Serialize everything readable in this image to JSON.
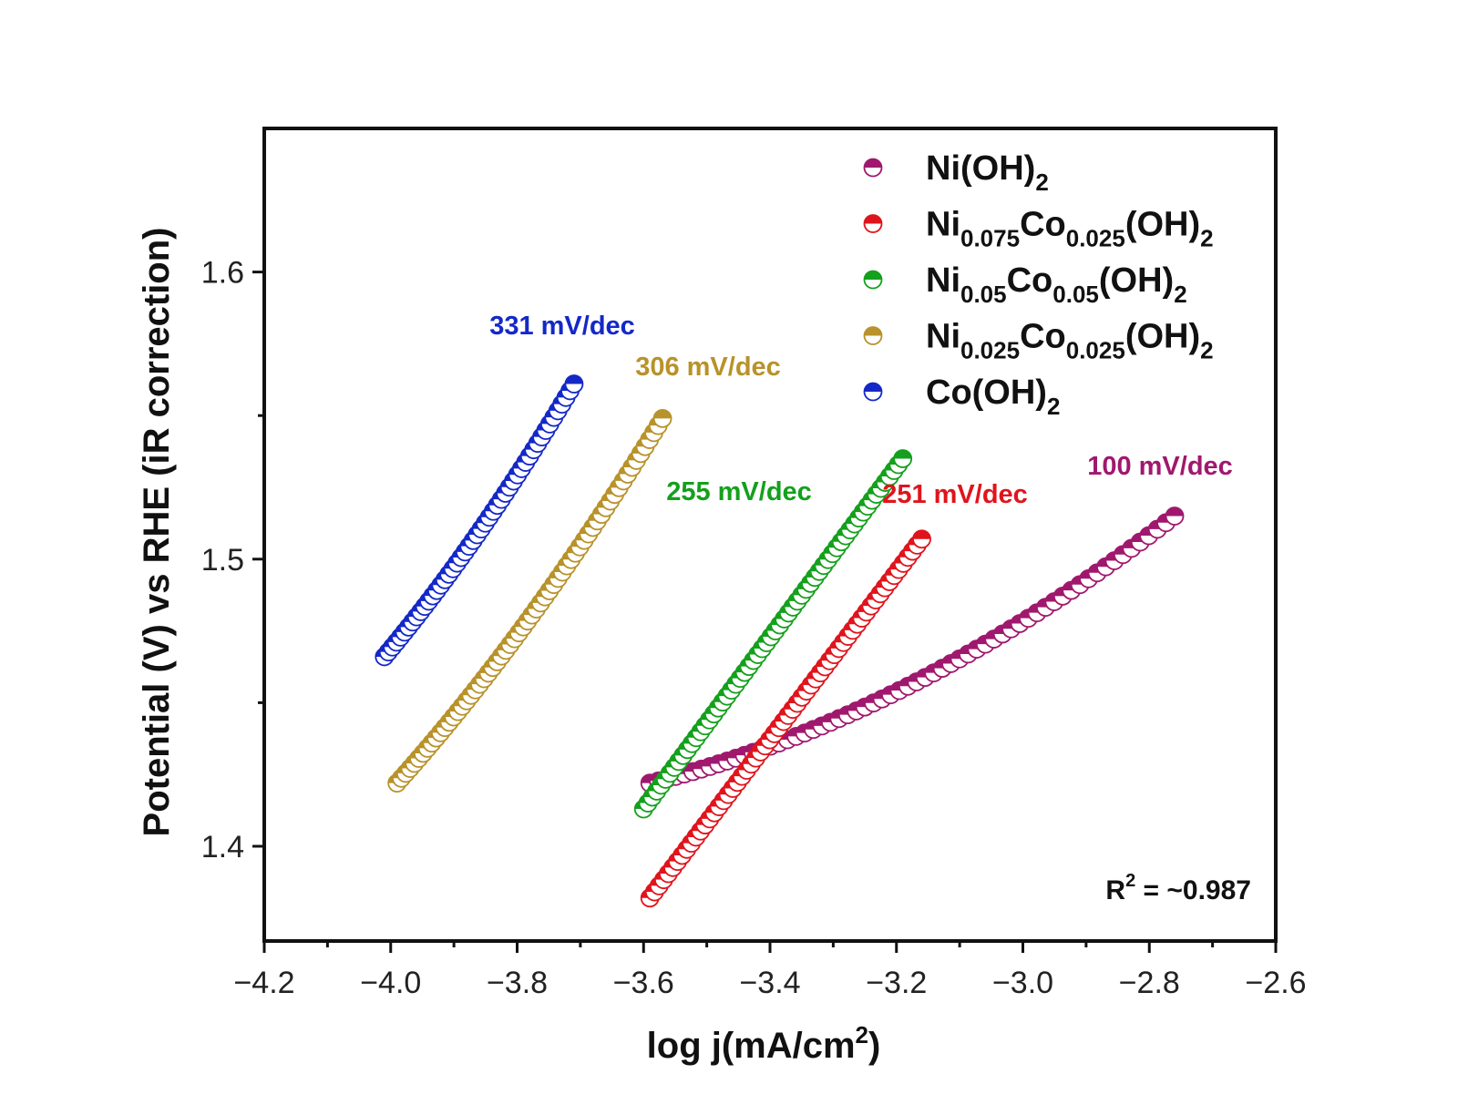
{
  "chart_data": {
    "type": "scatter",
    "xlabel": "log j(mA/cm",
    "xlabel_sup": "2",
    "xlabel_end": ")",
    "ylabel": "Potential (V) vs RHE (iR correction)",
    "xlim": [
      -4.2,
      -2.6
    ],
    "ylim": [
      1.367,
      1.65
    ],
    "x_ticks": [
      "−4.2",
      "−4.0",
      "−3.8",
      "−3.6",
      "−3.4",
      "−3.2",
      "−3.0",
      "−2.8",
      "−2.6"
    ],
    "x_tick_values": [
      -4.2,
      -4.0,
      -3.8,
      -3.6,
      -3.4,
      -3.2,
      -3.0,
      -2.8,
      -2.6
    ],
    "y_ticks": [
      "1.4",
      "1.5",
      "1.6"
    ],
    "y_tick_values": [
      1.4,
      1.5,
      1.6
    ],
    "legend_placement": "top-right",
    "marker": "half-filled circle",
    "series": [
      {
        "name": "Ni(OH)2",
        "legend_parts": [
          [
            "Ni(OH)",
            ""
          ],
          [
            "2",
            "sub"
          ]
        ],
        "color": "#a0186e",
        "x_range": [
          -3.59,
          -2.76
        ],
        "y_range": [
          1.422,
          1.515
        ],
        "points": 62,
        "slope_label": "100 mV/dec"
      },
      {
        "name": "Ni0.075Co0.025(OH)2",
        "legend_parts": [
          [
            "Ni",
            ""
          ],
          [
            "0.075",
            "sub"
          ],
          [
            "Co",
            ""
          ],
          [
            "0.025",
            "sub"
          ],
          [
            "(OH)",
            ""
          ],
          [
            "2",
            "sub"
          ]
        ],
        "color": "#e0141c",
        "x_range": [
          -3.59,
          -3.16
        ],
        "y_range": [
          1.382,
          1.507
        ],
        "points": 60,
        "slope_label": "251 mV/dec"
      },
      {
        "name": "Ni0.05Co0.05(OH)2",
        "legend_parts": [
          [
            "Ni",
            ""
          ],
          [
            "0.05",
            "sub"
          ],
          [
            "Co",
            ""
          ],
          [
            "0.05",
            "sub"
          ],
          [
            "(OH)",
            ""
          ],
          [
            "2",
            "sub"
          ]
        ],
        "color": "#14a01c",
        "x_range": [
          -3.6,
          -3.19
        ],
        "y_range": [
          1.413,
          1.535
        ],
        "points": 60,
        "slope_label": "255 mV/dec"
      },
      {
        "name": "Ni0.025Co0.025(OH)2",
        "legend_parts": [
          [
            "Ni",
            ""
          ],
          [
            "0.025",
            "sub"
          ],
          [
            "Co",
            ""
          ],
          [
            "0.025",
            "sub"
          ],
          [
            "(OH)",
            ""
          ],
          [
            "2",
            "sub"
          ]
        ],
        "color": "#b8922a",
        "x_range": [
          -3.99,
          -3.57
        ],
        "y_range": [
          1.422,
          1.549
        ],
        "points": 62,
        "slope_label": "306 mV/dec"
      },
      {
        "name": "Co(OH)2",
        "legend_parts": [
          [
            "Co(OH)",
            ""
          ],
          [
            "2",
            "sub"
          ]
        ],
        "color": "#1428c8",
        "x_range": [
          -4.01,
          -3.71
        ],
        "y_range": [
          1.466,
          1.561
        ],
        "points": 48,
        "slope_label": "331 mV/dec"
      }
    ],
    "annotations": {
      "r2_label": "R",
      "r2_sup": "2",
      "r2_value": " = ~0.987"
    }
  }
}
